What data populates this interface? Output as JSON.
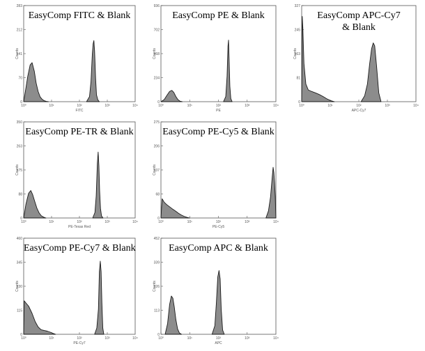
{
  "chart_data": [
    {
      "type": "area",
      "title": "EasyComp FITC & Blank",
      "xlabel": "FITC",
      "ylabel": "Counts",
      "xscale": "log",
      "xlim": [
        1,
        10000
      ],
      "ylim": [
        0,
        283
      ],
      "x_ticks": [
        "10⁰",
        "10¹",
        "10²",
        "10³"
      ],
      "y_ticks": [
        "0",
        "70",
        "141",
        "212",
        "283"
      ],
      "series": [
        {
          "x": [
            1.0,
            1.2,
            1.4,
            1.7,
            2.0,
            2.4,
            2.8,
            3.3,
            3.9,
            4.6,
            5.4,
            6.5,
            7.7
          ],
          "counts": [
            0,
            40,
            75,
            108,
            115,
            90,
            55,
            30,
            14,
            7,
            3,
            1,
            0
          ]
        },
        {
          "x": [
            180,
            230,
            260,
            290,
            310,
            330,
            350,
            380,
            410,
            460,
            520
          ],
          "counts": [
            0,
            15,
            60,
            140,
            170,
            180,
            150,
            70,
            20,
            5,
            0
          ]
        }
      ]
    },
    {
      "type": "area",
      "title": "EasyComp PE & Blank",
      "xlabel": "PE",
      "ylabel": "Counts",
      "xscale": "log",
      "xlim": [
        1,
        10000
      ],
      "ylim": [
        0,
        936
      ],
      "x_ticks": [
        "10⁰",
        "10¹",
        "10²",
        "10³"
      ],
      "y_ticks": [
        "0",
        "234",
        "468",
        "702",
        "936"
      ],
      "series": [
        {
          "x": [
            1.0,
            1.3,
            1.6,
            2.0,
            2.4,
            2.8,
            3.3,
            3.9,
            4.6,
            5.5
          ],
          "counts": [
            0,
            20,
            60,
            100,
            110,
            90,
            50,
            20,
            5,
            0
          ]
        },
        {
          "x": [
            150,
            180,
            200,
            215,
            225,
            235,
            250,
            270,
            300
          ],
          "counts": [
            0,
            50,
            250,
            540,
            600,
            420,
            150,
            30,
            0
          ]
        }
      ]
    },
    {
      "type": "area",
      "title": "EasyComp APC-Cy7 & Blank",
      "xlabel": "APC-Cy7",
      "ylabel": "Counts",
      "xscale": "log",
      "xlim": [
        1,
        10000
      ],
      "ylim": [
        0,
        327
      ],
      "x_ticks": [
        "10⁰",
        "10¹",
        "10²",
        "10³"
      ],
      "y_ticks": [
        "0",
        "81",
        "163",
        "245",
        "327"
      ],
      "series": [
        {
          "x": [
            1.0,
            1.05,
            1.1,
            1.2,
            1.4,
            1.7,
            2.2,
            3.0,
            4.0,
            5.5,
            7.5,
            10,
            14
          ],
          "counts": [
            0,
            290,
            250,
            130,
            60,
            40,
            35,
            30,
            25,
            18,
            10,
            4,
            0
          ]
        },
        {
          "x": [
            120,
            160,
            200,
            240,
            280,
            320,
            360,
            420,
            500,
            600
          ],
          "counts": [
            0,
            20,
            60,
            130,
            180,
            200,
            190,
            120,
            30,
            0
          ]
        }
      ]
    },
    {
      "type": "area",
      "title": "EasyComp PE-TR & Blank",
      "xlabel": "PE-Texas Red",
      "ylabel": "Counts",
      "xscale": "log",
      "xlim": [
        1,
        10000
      ],
      "ylim": [
        0,
        350
      ],
      "x_ticks": [
        "10⁰",
        "10¹",
        "10²",
        "10³"
      ],
      "y_ticks": [
        "0",
        "88",
        "175",
        "263",
        "350"
      ],
      "series": [
        {
          "x": [
            1.0,
            1.2,
            1.5,
            1.8,
            2.1,
            2.5,
            3.0,
            3.6,
            4.3,
            5.2,
            6.3
          ],
          "counts": [
            0,
            50,
            90,
            100,
            85,
            60,
            35,
            18,
            8,
            3,
            0
          ]
        },
        {
          "x": [
            300,
            360,
            400,
            440,
            470,
            500,
            530,
            570,
            620,
            700
          ],
          "counts": [
            0,
            20,
            80,
            200,
            240,
            190,
            100,
            35,
            8,
            0
          ]
        }
      ]
    },
    {
      "type": "area",
      "title": "EasyComp PE-Cy5 & Blank",
      "xlabel": "PE-Cy5",
      "ylabel": "Counts",
      "xscale": "log",
      "xlim": [
        1,
        10000
      ],
      "ylim": [
        0,
        275
      ],
      "x_ticks": [
        "10⁰",
        "10¹",
        "10²",
        "10³"
      ],
      "y_ticks": [
        "0",
        "68",
        "137",
        "206",
        "275"
      ],
      "series": [
        {
          "x": [
            1.0,
            1.1,
            1.3,
            1.6,
            2.0,
            2.5,
            3.2,
            4.0,
            5.0,
            6.3,
            8.0,
            10
          ],
          "counts": [
            0,
            55,
            45,
            38,
            32,
            26,
            20,
            14,
            9,
            5,
            2,
            0
          ]
        },
        {
          "x": [
            4500,
            5500,
            6500,
            7500,
            8000,
            8500,
            9000,
            9500,
            10000
          ],
          "counts": [
            0,
            20,
            60,
            120,
            145,
            130,
            100,
            60,
            0
          ]
        }
      ]
    },
    {
      "type": "area",
      "title": "EasyComp PE-Cy7 & Blank",
      "xlabel": "PE-Cy7",
      "ylabel": "Counts",
      "xscale": "log",
      "xlim": [
        1,
        10000
      ],
      "ylim": [
        0,
        460
      ],
      "x_ticks": [
        "10⁰",
        "10¹",
        "10²",
        "10³"
      ],
      "y_ticks": [
        "0",
        "115",
        "230",
        "345",
        "460"
      ],
      "series": [
        {
          "x": [
            1.0,
            1.05,
            1.2,
            1.5,
            2.0,
            2.6,
            3.3,
            4.2,
            5.5,
            7.0,
            9.0,
            11.5,
            14
          ],
          "counts": [
            0,
            160,
            150,
            135,
            100,
            60,
            35,
            22,
            18,
            15,
            10,
            4,
            0
          ]
        },
        {
          "x": [
            350,
            420,
            480,
            520,
            560,
            600,
            640,
            690,
            750
          ],
          "counts": [
            0,
            30,
            120,
            300,
            350,
            300,
            150,
            30,
            0
          ]
        }
      ]
    },
    {
      "type": "area",
      "title": "EasyComp APC & Blank",
      "xlabel": "APC",
      "ylabel": "Counts",
      "xscale": "log",
      "xlim": [
        1,
        10000
      ],
      "ylim": [
        0,
        452
      ],
      "x_ticks": [
        "10⁰",
        "10¹",
        "10²",
        "10³"
      ],
      "y_ticks": [
        "0",
        "113",
        "226",
        "339",
        "452"
      ],
      "series": [
        {
          "x": [
            1.4,
            1.7,
            2.0,
            2.3,
            2.6,
            2.9,
            3.3,
            3.8,
            4.4,
            5.2
          ],
          "counts": [
            0,
            50,
            140,
            180,
            170,
            130,
            70,
            25,
            6,
            0
          ]
        },
        {
          "x": [
            60,
            75,
            85,
            95,
            105,
            115,
            125,
            140,
            160
          ],
          "counts": [
            0,
            40,
            150,
            270,
            300,
            260,
            120,
            20,
            0
          ]
        }
      ]
    }
  ],
  "colors": {
    "fill": "#8c8c8c",
    "outline": "#1a1a1a",
    "axis": "#555555"
  }
}
